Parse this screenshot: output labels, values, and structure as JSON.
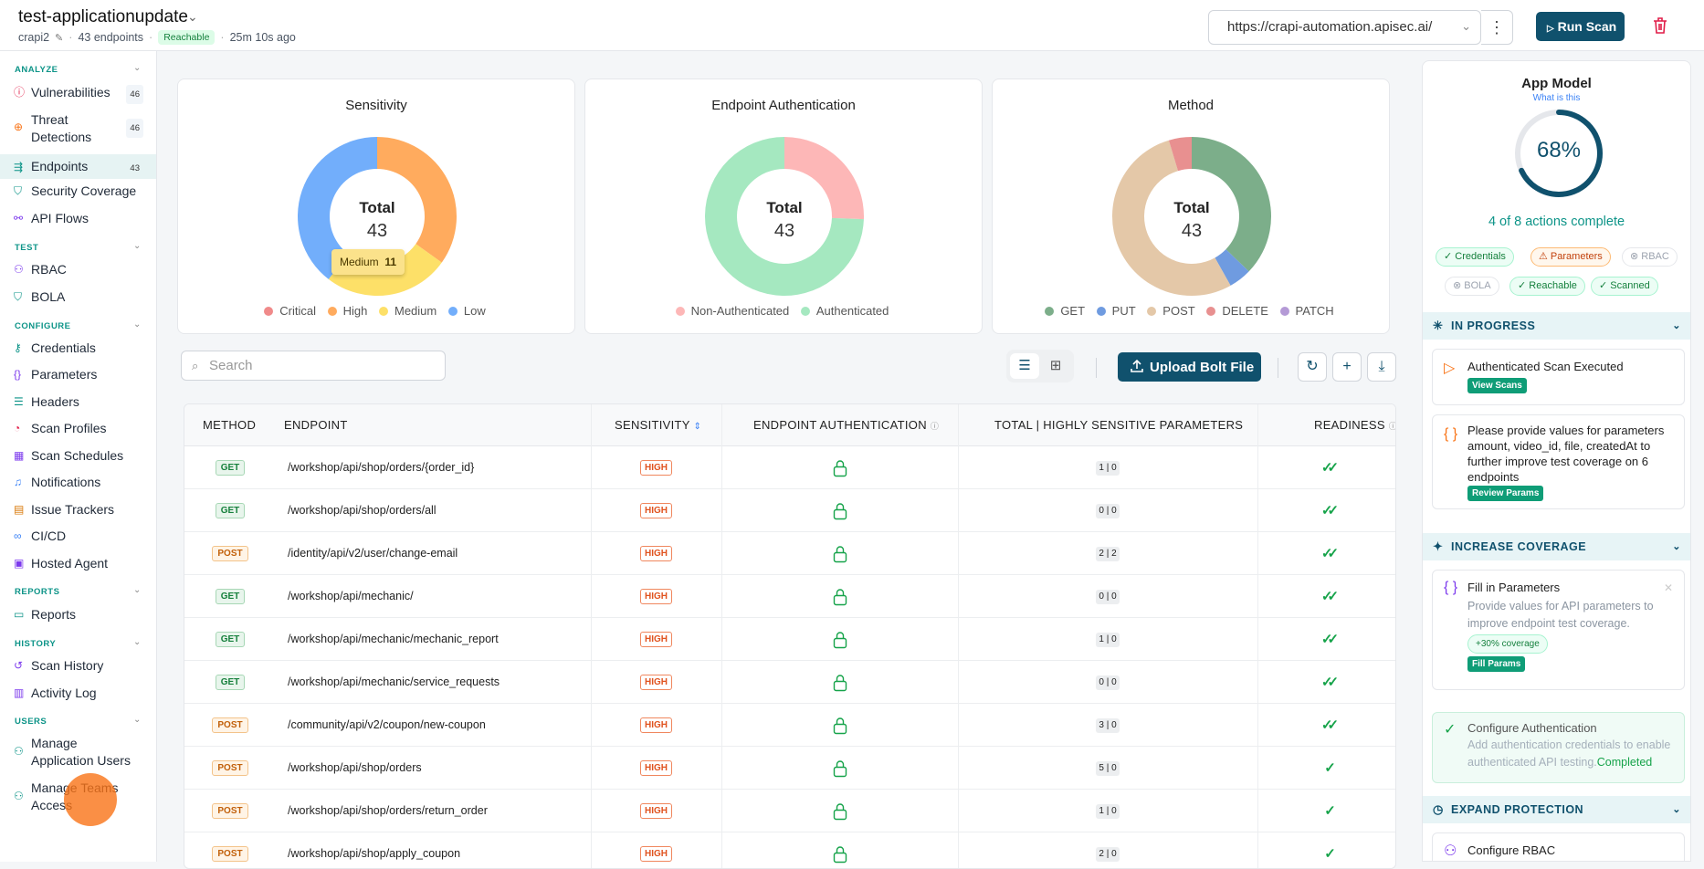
{
  "header": {
    "app_title": "test-applicationupdate",
    "project": "crapi2",
    "endpoint_count": "43 endpoints",
    "status": "Reachable",
    "last_seen": "25m 10s ago",
    "url": "https://crapi-automation.apisec.ai/",
    "run_label": "Run Scan"
  },
  "sidebar": {
    "sections": {
      "analyze": "ANALYZE",
      "test": "TEST",
      "configure": "CONFIGURE",
      "reports": "REPORTS",
      "history": "HISTORY",
      "users": "USERS"
    },
    "items": {
      "vulnerabilities": {
        "label": "Vulnerabilities",
        "count": "46"
      },
      "threat": {
        "label": "Threat Detections",
        "count": "46"
      },
      "endpoints": {
        "label": "Endpoints",
        "count": "43"
      },
      "security_coverage": {
        "label": "Security Coverage"
      },
      "api_flows": {
        "label": "API Flows"
      },
      "rbac": {
        "label": "RBAC"
      },
      "bola": {
        "label": "BOLA"
      },
      "credentials": {
        "label": "Credentials"
      },
      "parameters": {
        "label": "Parameters"
      },
      "headers": {
        "label": "Headers"
      },
      "scan_profiles": {
        "label": "Scan Profiles"
      },
      "scan_schedules": {
        "label": "Scan Schedules"
      },
      "notifications": {
        "label": "Notifications"
      },
      "issue_trackers": {
        "label": "Issue Trackers"
      },
      "cicd": {
        "label": "CI/CD"
      },
      "hosted_agent": {
        "label": "Hosted Agent"
      },
      "reports": {
        "label": "Reports"
      },
      "scan_history": {
        "label": "Scan History"
      },
      "activity_log": {
        "label": "Activity Log"
      },
      "manage_app_users": {
        "label": "Manage Application Users"
      },
      "manage_teams": {
        "label": "Manage Teams Access"
      }
    }
  },
  "charts": {
    "sensitivity": {
      "title": "Sensitivity",
      "center_label": "Total",
      "center_value": "43",
      "tooltip_label": "Medium",
      "tooltip_value": "11",
      "legend": [
        "Critical",
        "High",
        "Medium",
        "Low"
      ]
    },
    "auth": {
      "title": "Endpoint Authentication",
      "center_label": "Total",
      "center_value": "43",
      "legend": [
        "Non-Authenticated",
        "Authenticated"
      ]
    },
    "method": {
      "title": "Method",
      "center_label": "Total",
      "center_value": "43",
      "legend": [
        "GET",
        "PUT",
        "POST",
        "DELETE",
        "PATCH"
      ]
    }
  },
  "colors": {
    "critical": "#f08a8a",
    "high": "#ffab5e",
    "medium": "#fde068",
    "low": "#72aefb",
    "non_auth": "#fdb7b7",
    "auth": "#a5e8c0",
    "get": "#7cae8a",
    "put": "#6f9be0",
    "post": "#e4c8a8",
    "delete": "#e89090",
    "patch": "#b49ad6",
    "brand": "#10516d"
  },
  "chart_data": [
    {
      "type": "pie",
      "title": "Sensitivity",
      "categories": [
        "Critical",
        "High",
        "Medium",
        "Low"
      ],
      "values": [
        0,
        15,
        11,
        17
      ]
    },
    {
      "type": "pie",
      "title": "Endpoint Authentication",
      "categories": [
        "Non-Authenticated",
        "Authenticated"
      ],
      "values": [
        11,
        32
      ]
    },
    {
      "type": "pie",
      "title": "Method",
      "categories": [
        "GET",
        "PUT",
        "POST",
        "DELETE",
        "PATCH"
      ],
      "values": [
        16,
        2,
        23,
        2,
        0
      ]
    }
  ],
  "toolbar": {
    "search_placeholder": "Search",
    "upload_label": "Upload Bolt File"
  },
  "table": {
    "headers": {
      "method": "METHOD",
      "endpoint": "ENDPOINT",
      "sensitivity": "SENSITIVITY",
      "auth": "ENDPOINT AUTHENTICATION",
      "params": "TOTAL | HIGHLY SENSITIVE PARAMETERS",
      "readiness": "READINESS"
    },
    "rows": [
      {
        "method": "GET",
        "endpoint": "/workshop/api/shop/orders/{order_id}",
        "sensitivity": "HIGH",
        "params": "1 | 0",
        "ready": "✓✓"
      },
      {
        "method": "GET",
        "endpoint": "/workshop/api/shop/orders/all",
        "sensitivity": "HIGH",
        "params": "0 | 0",
        "ready": "✓✓"
      },
      {
        "method": "POST",
        "endpoint": "/identity/api/v2/user/change-email",
        "sensitivity": "HIGH",
        "params": "2 | 2",
        "ready": "✓✓"
      },
      {
        "method": "GET",
        "endpoint": "/workshop/api/mechanic/",
        "sensitivity": "HIGH",
        "params": "0 | 0",
        "ready": "✓✓"
      },
      {
        "method": "GET",
        "endpoint": "/workshop/api/mechanic/mechanic_report",
        "sensitivity": "HIGH",
        "params": "1 | 0",
        "ready": "✓✓"
      },
      {
        "method": "GET",
        "endpoint": "/workshop/api/mechanic/service_requests",
        "sensitivity": "HIGH",
        "params": "0 | 0",
        "ready": "✓✓"
      },
      {
        "method": "POST",
        "endpoint": "/community/api/v2/coupon/new-coupon",
        "sensitivity": "HIGH",
        "params": "3 | 0",
        "ready": "✓✓"
      },
      {
        "method": "POST",
        "endpoint": "/workshop/api/shop/orders",
        "sensitivity": "HIGH",
        "params": "5 | 0",
        "ready": "✓"
      },
      {
        "method": "POST",
        "endpoint": "/workshop/api/shop/orders/return_order",
        "sensitivity": "HIGH",
        "params": "1 | 0",
        "ready": "✓"
      },
      {
        "method": "POST",
        "endpoint": "/workshop/api/shop/apply_coupon",
        "sensitivity": "HIGH",
        "params": "2 | 0",
        "ready": "✓"
      }
    ]
  },
  "app_model": {
    "title": "App Model",
    "what": "What is this",
    "percent_label": "68%",
    "percent": 0.68,
    "actions": "4 of 8 actions complete",
    "chips": {
      "credentials": "Credentials",
      "parameters": "Parameters",
      "rbac": "RBAC",
      "bola": "BOLA",
      "reachable": "Reachable",
      "scanned": "Scanned"
    },
    "in_progress": {
      "title": "IN PROGRESS",
      "card1": {
        "text": "Authenticated Scan Executed",
        "button": "View Scans"
      },
      "card2": {
        "text": "Please provide values for parameters amount, video_id, file, createdAt to further improve test coverage on 6 endpoints",
        "button": "Review Params"
      }
    },
    "increase": {
      "title": "INCREASE COVERAGE",
      "card1": {
        "title": "Fill in Parameters",
        "desc": "Provide values for API parameters to improve endpoint test coverage.",
        "chip": "+30% coverage",
        "button": "Fill Params"
      },
      "card2": {
        "title": "Configure Authentication",
        "desc": "Add authentication credentials to enable authenticated API testing.",
        "status": "Completed"
      }
    },
    "expand": {
      "title": "EXPAND PROTECTION",
      "card1": "Configure RBAC"
    }
  }
}
